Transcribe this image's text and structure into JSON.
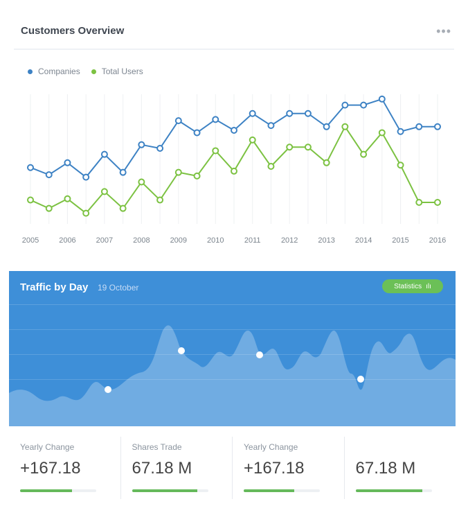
{
  "customers": {
    "title": "Customers Overview",
    "more_icon": "more-horizontal-icon",
    "legend": [
      {
        "name": "Companies",
        "color": "#3d82c4"
      },
      {
        "name": "Total Users",
        "color": "#7cc242"
      }
    ]
  },
  "chart_data": {
    "type": "line",
    "x": [
      "2005",
      "2005.5",
      "2006",
      "2006.5",
      "2007",
      "2007.5",
      "2008",
      "2008.5",
      "2009",
      "2009.5",
      "2010",
      "2010.5",
      "2011",
      "2011.5",
      "2012",
      "2012.5",
      "2013",
      "2013.5",
      "2014",
      "2014.5",
      "2015",
      "2015.5",
      "2016"
    ],
    "categories": [
      "2005",
      "2006",
      "2007",
      "2008",
      "2009",
      "2010",
      "2011",
      "2012",
      "2013",
      "2014",
      "2015",
      "2016"
    ],
    "series": [
      {
        "name": "Companies",
        "color": "#3d82c4",
        "values": [
          44,
          38,
          48,
          36,
          55,
          40,
          63,
          60,
          83,
          73,
          84,
          75,
          89,
          79,
          89,
          89,
          78,
          96,
          96,
          101,
          74,
          78,
          78
        ]
      },
      {
        "name": "Total Users",
        "color": "#7cc242",
        "values": [
          17,
          10,
          18,
          6,
          24,
          10,
          32,
          17,
          40,
          37,
          58,
          41,
          67,
          45,
          61,
          61,
          48,
          78,
          55,
          73,
          46,
          15,
          15
        ]
      }
    ],
    "grid": true,
    "legend_position": "top-left"
  },
  "traffic": {
    "title": "Traffic by Day",
    "date": "19 October",
    "statistics_label": "Statistics",
    "statistics_icon": "chart-icon"
  },
  "stats": [
    {
      "label": "Yearly Change",
      "value": "+167.18",
      "progress": 0.68
    },
    {
      "label": "Shares Trade",
      "value": "67.18 M",
      "progress": 0.86
    },
    {
      "label": "Yearly Change",
      "value": "+167.18",
      "progress": 0.66
    },
    {
      "label": "",
      "value": "67.18 M",
      "progress": 0.88
    }
  ],
  "colors": {
    "traffic_bg": "#3e8fd8",
    "progress": "#65b95b"
  }
}
